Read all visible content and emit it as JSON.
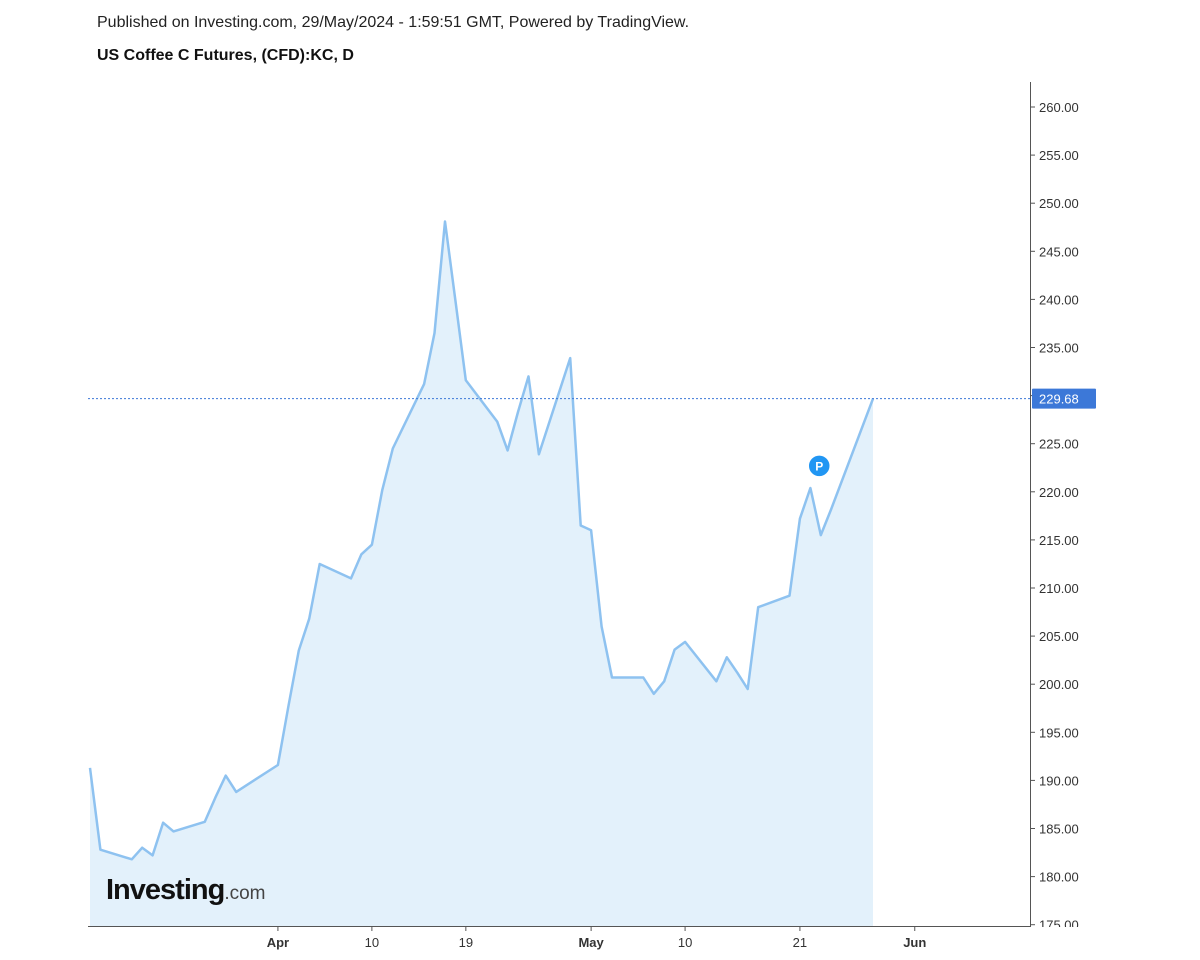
{
  "header": {
    "published": "Published on Investing.com, 29/May/2024 - 1:59:51 GMT, Powered by TradingView.",
    "title": "US Coffee C Futures, (CFD):KC, D"
  },
  "brand": {
    "main": "Investing",
    "suffix": ".com"
  },
  "colors": {
    "line": "#8ec2f0",
    "fill": "#e3f1fb",
    "last_price_bg": "#3c78d8",
    "last_price_line": "#3c78d8",
    "marker": "#2196f3",
    "axis": "#555555",
    "text": "#333333"
  },
  "chart_data": {
    "type": "area",
    "title": "US Coffee C Futures, (CFD):KC, D",
    "ylim": [
      175,
      262
    ],
    "y_ticks": [
      175,
      180,
      185,
      190,
      195,
      200,
      205,
      210,
      215,
      220,
      225,
      230,
      235,
      240,
      245,
      250,
      255,
      260
    ],
    "y_tick_format": "2-decimal",
    "x_ticks": [
      {
        "label": "Apr",
        "date": "2024-04-01",
        "bold": true
      },
      {
        "label": "10",
        "date": "2024-04-10",
        "bold": false
      },
      {
        "label": "19",
        "date": "2024-04-19",
        "bold": false
      },
      {
        "label": "May",
        "date": "2024-05-01",
        "bold": true
      },
      {
        "label": "10",
        "date": "2024-05-10",
        "bold": false
      },
      {
        "label": "21",
        "date": "2024-05-21",
        "bold": false
      },
      {
        "label": "Jun",
        "date": "2024-06-01",
        "bold": true
      }
    ],
    "x_range": [
      "2024-03-14",
      "2024-06-06"
    ],
    "series": [
      {
        "points": [
          [
            "2024-03-14",
            191.3
          ],
          [
            "2024-03-15",
            182.8
          ],
          [
            "2024-03-18",
            181.8
          ],
          [
            "2024-03-19",
            183.0
          ],
          [
            "2024-03-20",
            182.2
          ],
          [
            "2024-03-21",
            185.6
          ],
          [
            "2024-03-22",
            184.7
          ],
          [
            "2024-03-25",
            185.7
          ],
          [
            "2024-03-26",
            188.2
          ],
          [
            "2024-03-27",
            190.5
          ],
          [
            "2024-03-28",
            188.8
          ],
          [
            "2024-04-01",
            191.6
          ],
          [
            "2024-04-02",
            197.7
          ],
          [
            "2024-04-03",
            203.5
          ],
          [
            "2024-04-04",
            206.8
          ],
          [
            "2024-04-05",
            212.5
          ],
          [
            "2024-04-08",
            211.0
          ],
          [
            "2024-04-09",
            213.5
          ],
          [
            "2024-04-10",
            214.5
          ],
          [
            "2024-04-11",
            220.2
          ],
          [
            "2024-04-12",
            224.5
          ],
          [
            "2024-04-15",
            231.2
          ],
          [
            "2024-04-16",
            236.5
          ],
          [
            "2024-04-17",
            248.1
          ],
          [
            "2024-04-18",
            239.9
          ],
          [
            "2024-04-19",
            231.6
          ],
          [
            "2024-04-22",
            227.3
          ],
          [
            "2024-04-23",
            224.3
          ],
          [
            "2024-04-24",
            228.3
          ],
          [
            "2024-04-25",
            232.0
          ],
          [
            "2024-04-26",
            223.9
          ],
          [
            "2024-04-29",
            233.9
          ],
          [
            "2024-04-30",
            216.5
          ],
          [
            "2024-05-01",
            216.0
          ],
          [
            "2024-05-02",
            206.0
          ],
          [
            "2024-05-03",
            200.7
          ],
          [
            "2024-05-06",
            200.7
          ],
          [
            "2024-05-07",
            199.0
          ],
          [
            "2024-05-08",
            200.3
          ],
          [
            "2024-05-09",
            203.6
          ],
          [
            "2024-05-10",
            204.4
          ],
          [
            "2024-05-13",
            200.3
          ],
          [
            "2024-05-14",
            202.8
          ],
          [
            "2024-05-15",
            201.2
          ],
          [
            "2024-05-16",
            199.5
          ],
          [
            "2024-05-17",
            208.0
          ],
          [
            "2024-05-20",
            209.2
          ],
          [
            "2024-05-21",
            217.2
          ],
          [
            "2024-05-22",
            220.4
          ],
          [
            "2024-05-23",
            215.5
          ],
          [
            "2024-05-24",
            218.2
          ],
          [
            "2024-05-28",
            229.68
          ]
        ]
      }
    ],
    "last_price": 229.68,
    "last_price_label": "229.68",
    "marker": {
      "label": "P",
      "date": "2024-05-24",
      "y": 222.7
    },
    "grid": false
  }
}
